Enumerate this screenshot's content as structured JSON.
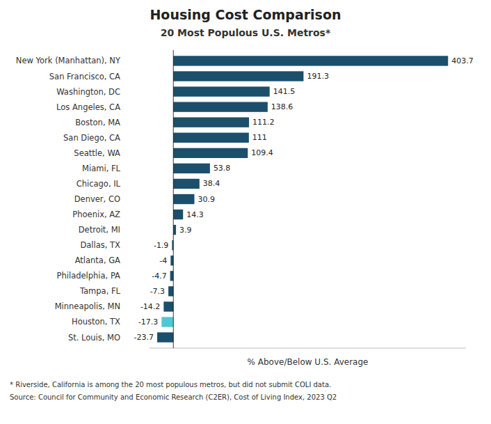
{
  "chart_data": {
    "type": "bar",
    "orientation": "horizontal",
    "title": "Housing Cost Comparison",
    "subtitle": "20 Most Populous U.S. Metros*",
    "x_label": "% Above/Below U.S. Average",
    "annotations": [
      "* Riverside, California is among the 20 most populous metros, but did not submit COLI data.",
      "Source: Council for Community and Economic Research (C2ER), Cost of Living Index, 2023 Q2"
    ],
    "categories": [
      "New York (Manhattan), NY",
      "San Francisco, CA",
      "Washington, DC",
      "Los Angeles, CA",
      "Boston, MA",
      "San Diego, CA",
      "Seattle, WA",
      "Miami, FL",
      "Chicago, IL",
      "Denver, CO",
      "Phoenix, AZ",
      "Detroit, MI",
      "Dallas, TX",
      "Atlanta, GA",
      "Philadelphia, PA",
      "Tampa, FL",
      "Minneapolis, MN",
      "Houston, TX",
      "St. Louis, MO"
    ],
    "values": [
      403.7,
      191.3,
      141.5,
      138.6,
      111.2,
      111.0,
      109.4,
      53.8,
      38.4,
      30.9,
      14.3,
      3.9,
      -1.9,
      -4.0,
      -4.7,
      -7.3,
      -14.2,
      -17.3,
      -23.7
    ],
    "colors": [
      "#1b4f6b",
      "#1b4f6b",
      "#1b4f6b",
      "#1b4f6b",
      "#1b4f6b",
      "#1b4f6b",
      "#1b4f6b",
      "#1b4f6b",
      "#1b4f6b",
      "#1b4f6b",
      "#1b4f6b",
      "#1b4f6b",
      "#1b4f6b",
      "#1b4f6b",
      "#1b4f6b",
      "#1b4f6b",
      "#1b4f6b",
      "#4ec8d4",
      "#1b4f6b"
    ],
    "xlim": [
      -35,
      430
    ],
    "data_labels": true,
    "tick_labels": "y",
    "grid": false
  }
}
